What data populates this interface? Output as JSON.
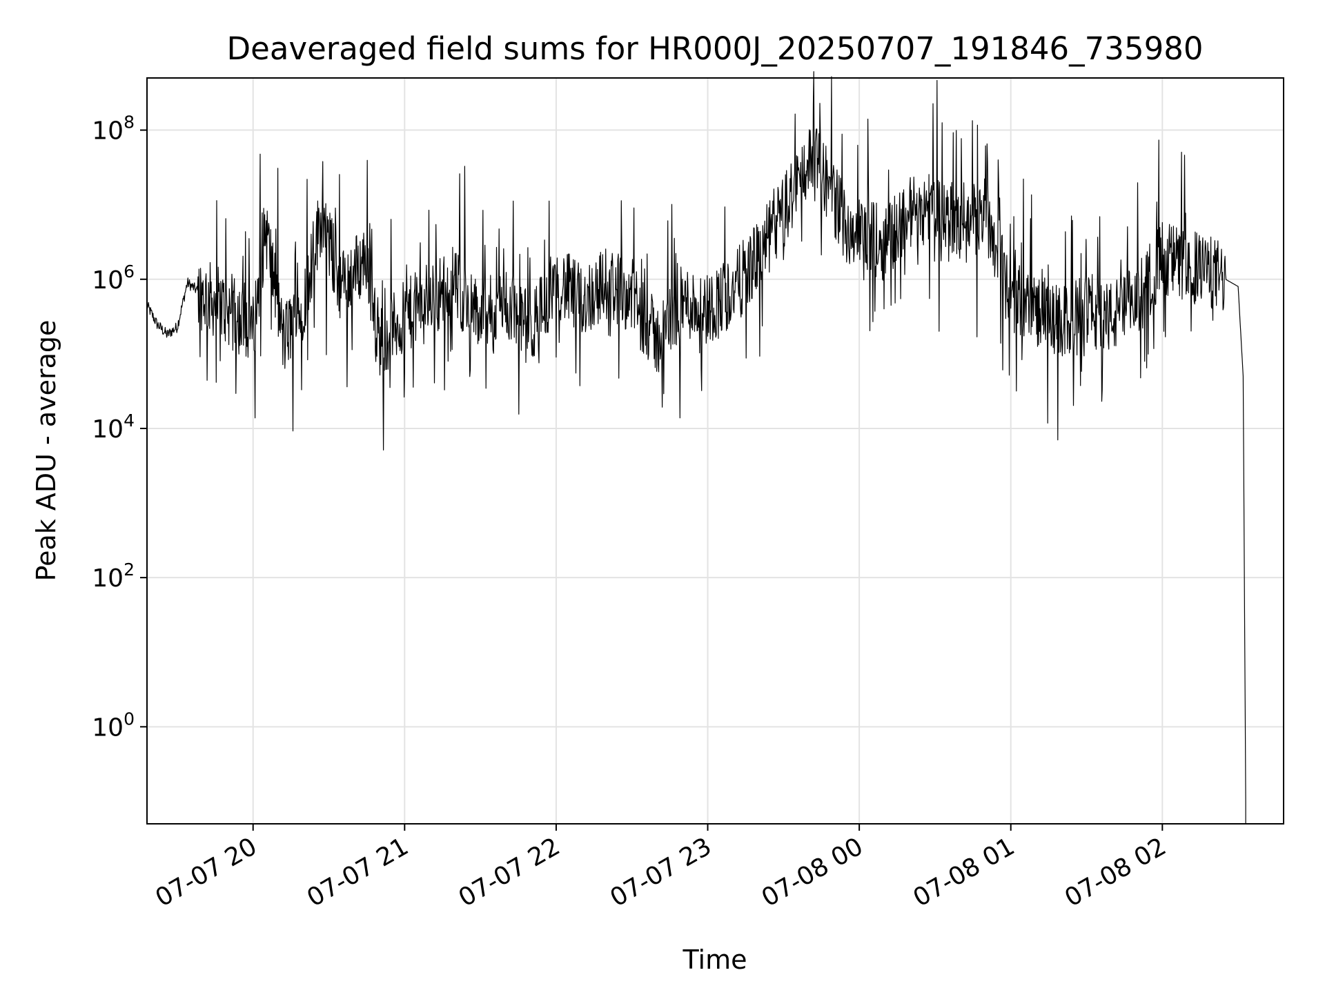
{
  "chart_data": {
    "type": "line",
    "title": "Deaveraged field sums for HR000J_20250707_191846_735980",
    "xlabel": "Time",
    "ylabel": "Peak ADU - average",
    "yscale": "log",
    "xlim": [
      "2025-07-07 19:18",
      "2025-07-08 02:48"
    ],
    "ylim": [
      0.05,
      500000000
    ],
    "grid": true,
    "line_color": "#000000",
    "x_ticks": [
      "07-07 20",
      "07-07 21",
      "07-07 22",
      "07-07 23",
      "07-08 00",
      "07-08 01",
      "07-08 02"
    ],
    "y_ticks": [
      {
        "value": 1,
        "base": "10",
        "exp": "0"
      },
      {
        "value": 100,
        "base": "10",
        "exp": "2"
      },
      {
        "value": 10000,
        "base": "10",
        "exp": "4"
      },
      {
        "value": 1000000,
        "base": "10",
        "exp": "6"
      },
      {
        "value": 100000000,
        "base": "10",
        "exp": "8"
      }
    ],
    "series": [
      {
        "points": [
          [
            "2025-07-07 19:18",
            450000
          ],
          [
            "2025-07-07 19:22",
            250000
          ],
          [
            "2025-07-07 19:26",
            180000
          ],
          [
            "2025-07-07 19:30",
            230000
          ],
          [
            "2025-07-07 19:34",
            900000
          ],
          [
            "2025-07-07 19:38",
            700000
          ],
          [
            "2025-07-07 19:45",
            500000
          ],
          [
            "2025-07-07 19:52",
            350000
          ],
          [
            "2025-07-07 20:00",
            200000
          ],
          [
            "2025-07-07 20:05",
            5000000
          ],
          [
            "2025-07-07 20:12",
            150000
          ],
          [
            "2025-07-07 20:20",
            500000
          ],
          [
            "2025-07-07 20:27",
            7000000
          ],
          [
            "2025-07-07 20:35",
            800000
          ],
          [
            "2025-07-07 20:45",
            2000000
          ],
          [
            "2025-07-07 20:50",
            150000
          ],
          [
            "2025-07-07 21:00",
            300000
          ],
          [
            "2025-07-07 21:10",
            600000
          ],
          [
            "2025-07-07 21:20",
            800000
          ],
          [
            "2025-07-07 21:30",
            300000
          ],
          [
            "2025-07-07 21:40",
            500000
          ],
          [
            "2025-07-07 21:50",
            200000
          ],
          [
            "2025-07-07 22:00",
            1000000
          ],
          [
            "2025-07-07 22:10",
            500000
          ],
          [
            "2025-07-07 22:20",
            900000
          ],
          [
            "2025-07-07 22:30",
            600000
          ],
          [
            "2025-07-07 22:40",
            150000
          ],
          [
            "2025-07-07 22:50",
            500000
          ],
          [
            "2025-07-07 23:00",
            400000
          ],
          [
            "2025-07-07 23:10",
            700000
          ],
          [
            "2025-07-07 23:20",
            2000000
          ],
          [
            "2025-07-07 23:30",
            8000000
          ],
          [
            "2025-07-07 23:40",
            40000000
          ],
          [
            "2025-07-07 23:45",
            30000000
          ],
          [
            "2025-07-07 23:55",
            5000000
          ],
          [
            "2025-07-08 00:10",
            3000000
          ],
          [
            "2025-07-08 00:20",
            8000000
          ],
          [
            "2025-07-08 00:30",
            10000000
          ],
          [
            "2025-07-08 00:40",
            5000000
          ],
          [
            "2025-07-08 00:50",
            8000000
          ],
          [
            "2025-07-08 01:00",
            600000
          ],
          [
            "2025-07-08 01:10",
            400000
          ],
          [
            "2025-07-08 01:20",
            250000
          ],
          [
            "2025-07-08 01:30",
            400000
          ],
          [
            "2025-07-08 01:40",
            300000
          ],
          [
            "2025-07-08 01:50",
            500000
          ],
          [
            "2025-07-08 02:00",
            2000000
          ],
          [
            "2025-07-08 02:10",
            1500000
          ],
          [
            "2025-07-08 02:20",
            1200000
          ],
          [
            "2025-07-08 02:25",
            1000000
          ],
          [
            "2025-07-08 02:30",
            800000
          ],
          [
            "2025-07-08 02:32",
            50000
          ],
          [
            "2025-07-08 02:33",
            0.1
          ]
        ]
      }
    ]
  }
}
